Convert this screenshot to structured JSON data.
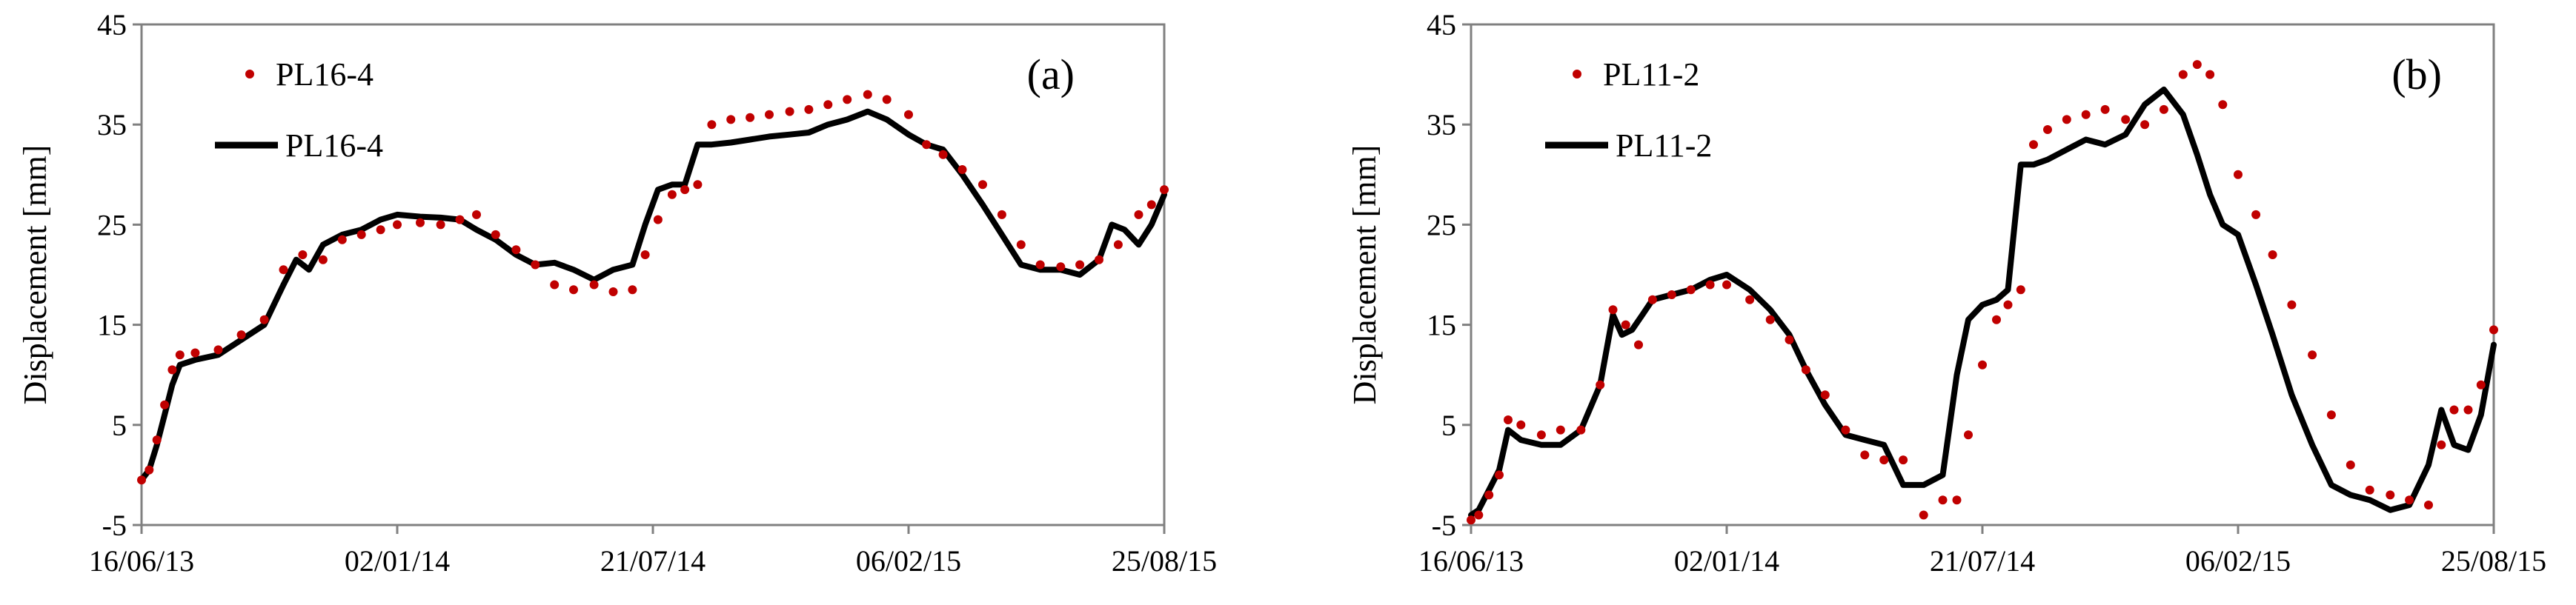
{
  "chart_data": [
    {
      "type": "scatter+line",
      "panel_label": "(a)",
      "ylabel": "Displacement  [mm]",
      "xlabel": "",
      "ylim": [
        -5,
        45
      ],
      "yticks": [
        "-5",
        "5",
        "15",
        "25",
        "35",
        "45"
      ],
      "xlim": [
        "2013-06-16",
        "2015-08-25"
      ],
      "xticks": [
        "16/06/13",
        "02/01/14",
        "21/07/14",
        "06/02/15",
        "25/08/15"
      ],
      "grid": false,
      "legend_position": "top-left",
      "colors": {
        "points": "#c00000",
        "line": "#000000"
      },
      "series": [
        {
          "name": "PL16-4",
          "kind": "points",
          "x": [
            "2013-06-16",
            "2013-06-22",
            "2013-06-28",
            "2013-07-04",
            "2013-07-10",
            "2013-07-16",
            "2013-07-28",
            "2013-08-15",
            "2013-09-02",
            "2013-09-20",
            "2013-10-05",
            "2013-10-20",
            "2013-11-05",
            "2013-11-20",
            "2013-12-05",
            "2013-12-20",
            "2014-01-02",
            "2014-01-20",
            "2014-02-05",
            "2014-02-20",
            "2014-03-05",
            "2014-03-20",
            "2014-04-05",
            "2014-04-20",
            "2014-05-05",
            "2014-05-20",
            "2014-06-05",
            "2014-06-20",
            "2014-07-05",
            "2014-07-15",
            "2014-07-25",
            "2014-08-05",
            "2014-08-15",
            "2014-08-25",
            "2014-09-05",
            "2014-09-20",
            "2014-10-05",
            "2014-10-20",
            "2014-11-05",
            "2014-11-20",
            "2014-12-05",
            "2014-12-20",
            "2015-01-05",
            "2015-01-20",
            "2015-02-06",
            "2015-02-20",
            "2015-03-05",
            "2015-03-20",
            "2015-04-05",
            "2015-04-20",
            "2015-05-05",
            "2015-05-20",
            "2015-06-05",
            "2015-06-20",
            "2015-07-05",
            "2015-07-20",
            "2015-08-05",
            "2015-08-15",
            "2015-08-25"
          ],
          "y": [
            -0.5,
            0.5,
            3.5,
            7,
            10.5,
            12,
            12.2,
            12.5,
            14,
            15.5,
            20.5,
            22,
            21.5,
            23.5,
            24,
            24.5,
            25,
            25.2,
            25,
            25.5,
            26,
            24,
            22.5,
            21,
            19,
            18.5,
            19,
            18.3,
            18.5,
            22,
            25.5,
            28,
            28.5,
            29,
            35,
            35.5,
            35.7,
            36,
            36.3,
            36.5,
            37,
            37.5,
            38,
            37.5,
            36,
            33,
            32,
            30.5,
            29,
            26,
            23,
            21,
            20.8,
            21,
            21.5,
            23,
            26,
            27,
            28.5
          ]
        },
        {
          "name": "PL16-4",
          "kind": "line",
          "x": [
            "2013-06-16",
            "2013-06-22",
            "2013-06-28",
            "2013-07-04",
            "2013-07-10",
            "2013-07-16",
            "2013-07-28",
            "2013-08-15",
            "2013-09-02",
            "2013-09-20",
            "2013-10-05",
            "2013-10-15",
            "2013-10-25",
            "2013-11-05",
            "2013-11-20",
            "2013-12-05",
            "2013-12-20",
            "2014-01-02",
            "2014-01-20",
            "2014-02-05",
            "2014-02-20",
            "2014-03-05",
            "2014-03-20",
            "2014-04-05",
            "2014-04-20",
            "2014-05-05",
            "2014-05-20",
            "2014-06-05",
            "2014-06-20",
            "2014-07-05",
            "2014-07-15",
            "2014-07-25",
            "2014-08-05",
            "2014-08-15",
            "2014-08-25",
            "2014-09-05",
            "2014-09-20",
            "2014-10-05",
            "2014-10-20",
            "2014-11-05",
            "2014-11-20",
            "2014-12-05",
            "2014-12-20",
            "2015-01-05",
            "2015-01-20",
            "2015-02-06",
            "2015-02-20",
            "2015-03-05",
            "2015-03-20",
            "2015-04-05",
            "2015-04-20",
            "2015-05-05",
            "2015-05-20",
            "2015-06-05",
            "2015-06-20",
            "2015-07-05",
            "2015-07-15",
            "2015-07-25",
            "2015-08-05",
            "2015-08-15",
            "2015-08-25"
          ],
          "y": [
            -0.5,
            0.5,
            3,
            6,
            9,
            11,
            11.5,
            12,
            13.5,
            15,
            19,
            21.5,
            20.5,
            23,
            24,
            24.5,
            25.5,
            26,
            25.8,
            25.7,
            25.5,
            24.5,
            23.5,
            22,
            21,
            21.2,
            20.5,
            19.5,
            20.5,
            21,
            25,
            28.5,
            29,
            29,
            33,
            33,
            33.2,
            33.5,
            33.8,
            34,
            34.2,
            35,
            35.5,
            36.3,
            35.5,
            34,
            33,
            32.5,
            30,
            27,
            24,
            21,
            20.5,
            20.5,
            20,
            21.5,
            25,
            24.5,
            23,
            25,
            28
          ]
        }
      ]
    },
    {
      "type": "scatter+line",
      "panel_label": "(b)",
      "ylabel": "Displacement  [mm]",
      "xlabel": "",
      "ylim": [
        -5,
        45
      ],
      "yticks": [
        "-5",
        "5",
        "15",
        "25",
        "35",
        "45"
      ],
      "xlim": [
        "2013-06-16",
        "2015-08-25"
      ],
      "xticks": [
        "16/06/13",
        "02/01/14",
        "21/07/14",
        "06/02/15",
        "25/08/15"
      ],
      "grid": false,
      "legend_position": "top-left",
      "colors": {
        "points": "#c00000",
        "line": "#000000"
      },
      "series": [
        {
          "name": "PL11-2",
          "kind": "points",
          "x": [
            "2013-06-16",
            "2013-06-22",
            "2013-06-30",
            "2013-07-08",
            "2013-07-15",
            "2013-07-25",
            "2013-08-10",
            "2013-08-25",
            "2013-09-10",
            "2013-09-25",
            "2013-10-05",
            "2013-10-15",
            "2013-10-25",
            "2013-11-05",
            "2013-11-20",
            "2013-12-05",
            "2013-12-20",
            "2014-01-02",
            "2014-01-20",
            "2014-02-05",
            "2014-02-20",
            "2014-03-05",
            "2014-03-20",
            "2014-04-05",
            "2014-04-20",
            "2014-05-05",
            "2014-05-20",
            "2014-06-05",
            "2014-06-20",
            "2014-07-01",
            "2014-07-10",
            "2014-07-21",
            "2014-08-01",
            "2014-08-10",
            "2014-08-20",
            "2014-08-30",
            "2014-09-10",
            "2014-09-25",
            "2014-10-10",
            "2014-10-25",
            "2014-11-10",
            "2014-11-25",
            "2014-12-10",
            "2014-12-25",
            "2015-01-05",
            "2015-01-15",
            "2015-01-25",
            "2015-02-06",
            "2015-02-20",
            "2015-03-05",
            "2015-03-20",
            "2015-04-05",
            "2015-04-20",
            "2015-05-05",
            "2015-05-20",
            "2015-06-05",
            "2015-06-20",
            "2015-07-05",
            "2015-07-15",
            "2015-07-25",
            "2015-08-05",
            "2015-08-15",
            "2015-08-25"
          ],
          "y": [
            -4.5,
            -4,
            -2,
            0,
            5.5,
            5,
            4,
            4.5,
            4.5,
            9,
            16.5,
            15,
            13,
            17.5,
            18,
            18.5,
            19,
            19,
            17.5,
            15.5,
            13.5,
            10.5,
            8,
            4.5,
            2,
            1.5,
            1.5,
            -4,
            -2.5,
            -2.5,
            4,
            11,
            15.5,
            17,
            18.5,
            33,
            34.5,
            35.5,
            36,
            36.5,
            35.5,
            35,
            36.5,
            40,
            41,
            40,
            37,
            30,
            26,
            22,
            17,
            12,
            6,
            1,
            -1.5,
            -2,
            -2.5,
            -3,
            3,
            6.5,
            6.5,
            9,
            14.5
          ]
        },
        {
          "name": "PL11-2",
          "kind": "line",
          "x": [
            "2013-06-16",
            "2013-06-22",
            "2013-06-30",
            "2013-07-08",
            "2013-07-15",
            "2013-07-25",
            "2013-08-10",
            "2013-08-25",
            "2013-09-10",
            "2013-09-25",
            "2013-10-05",
            "2013-10-12",
            "2013-10-20",
            "2013-10-28",
            "2013-11-05",
            "2013-11-20",
            "2013-12-05",
            "2013-12-20",
            "2014-01-02",
            "2014-01-20",
            "2014-02-05",
            "2014-02-20",
            "2014-03-05",
            "2014-03-20",
            "2014-04-05",
            "2014-04-20",
            "2014-05-05",
            "2014-05-20",
            "2014-06-05",
            "2014-06-20",
            "2014-07-01",
            "2014-07-10",
            "2014-07-21",
            "2014-08-01",
            "2014-08-10",
            "2014-08-20",
            "2014-08-30",
            "2014-09-10",
            "2014-09-25",
            "2014-10-10",
            "2014-10-25",
            "2014-11-10",
            "2014-11-25",
            "2014-12-10",
            "2014-12-25",
            "2015-01-05",
            "2015-01-15",
            "2015-01-25",
            "2015-02-06",
            "2015-02-20",
            "2015-03-05",
            "2015-03-20",
            "2015-04-05",
            "2015-04-20",
            "2015-05-05",
            "2015-05-20",
            "2015-06-05",
            "2015-06-20",
            "2015-07-05",
            "2015-07-15",
            "2015-07-25",
            "2015-08-05",
            "2015-08-15",
            "2015-08-25"
          ],
          "y": [
            -4,
            -3.5,
            -1.5,
            0.5,
            4.5,
            3.5,
            3,
            3,
            4.5,
            9,
            16,
            14,
            14.5,
            16,
            17.5,
            18,
            18.5,
            19.5,
            20,
            18.5,
            16.5,
            14,
            10.5,
            7,
            4,
            3.5,
            3,
            -1,
            -1,
            0,
            10,
            15.5,
            17,
            17.5,
            18.5,
            31,
            31,
            31.5,
            32.5,
            33.5,
            33,
            34,
            37,
            38.5,
            36,
            32,
            28,
            25,
            24,
            19,
            14,
            8,
            3,
            -1,
            -2,
            -2.5,
            -3.5,
            -3,
            1,
            6.5,
            3,
            2.5,
            6,
            13
          ]
        }
      ]
    }
  ]
}
